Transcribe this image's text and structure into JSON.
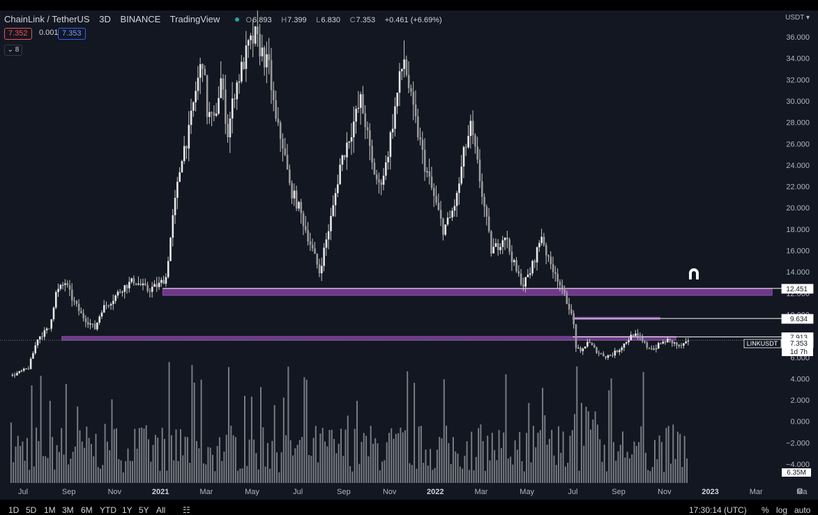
{
  "header": {
    "symbol": "ChainLink / TetherUS",
    "interval": "3D",
    "exchange": "BINANCE",
    "source": "TradingView",
    "ohlc": {
      "o_label": "O",
      "o": "6.893",
      "h_label": "H",
      "h": "7.399",
      "l_label": "L",
      "l": "6.830",
      "c_label": "C",
      "c": "7.353",
      "change": "+0.461 (+6.69%)"
    },
    "bid": "7.352",
    "spread": "0.001",
    "ask": "7.353",
    "indicator_toggle": "8",
    "currency": "USDT"
  },
  "colors": {
    "background": "#131722",
    "candle": "#c8c8c8",
    "volume": "#8a8d93",
    "zone": "#8e44ad",
    "line": "#ffffff"
  },
  "chart_data": {
    "type": "candlestick",
    "timeframe": "3D",
    "ylim": [
      -5.2,
      37.6
    ],
    "y_ticks": [
      "36.000",
      "34.000",
      "32.000",
      "30.000",
      "28.000",
      "26.000",
      "24.000",
      "22.000",
      "20.000",
      "18.000",
      "16.000",
      "14.000",
      "12.000",
      "10.000",
      "8.000",
      "6.000",
      "4.000",
      "2.000",
      "0.000",
      "−2.000",
      "−4.000"
    ],
    "y_tick_values": [
      36,
      34,
      32,
      30,
      28,
      26,
      24,
      22,
      20,
      18,
      16,
      14,
      12,
      10,
      8,
      6,
      4,
      2,
      0,
      -2,
      -4
    ],
    "x_ticks": [
      "Jul",
      "Sep",
      "Nov",
      "2021",
      "Mar",
      "May",
      "Jul",
      "Sep",
      "Nov",
      "2022",
      "Mar",
      "May",
      "Jul",
      "Sep",
      "Nov",
      "2023",
      "Mar",
      "Ma"
    ],
    "x_tick_months": [
      0,
      2,
      4,
      6,
      8,
      10,
      12,
      14,
      16,
      18,
      20,
      22,
      24,
      26,
      28,
      30,
      32,
      34
    ],
    "x_bold": [
      false,
      false,
      false,
      true,
      false,
      false,
      false,
      false,
      false,
      true,
      false,
      false,
      false,
      false,
      false,
      true,
      false,
      false
    ],
    "price_path": [
      [
        -0.5,
        4.3
      ],
      [
        0.2,
        5.0
      ],
      [
        0.6,
        7.8
      ],
      [
        1.1,
        8.7
      ],
      [
        1.4,
        12.0
      ],
      [
        1.8,
        13.0
      ],
      [
        2.1,
        11.5
      ],
      [
        2.5,
        10.0
      ],
      [
        3.1,
        8.7
      ],
      [
        3.4,
        10.5
      ],
      [
        3.9,
        11.5
      ],
      [
        4.3,
        12.5
      ],
      [
        4.8,
        13.2
      ],
      [
        5.4,
        12.3
      ],
      [
        5.9,
        12.8
      ],
      [
        6.2,
        13.5
      ],
      [
        6.5,
        19.0
      ],
      [
        6.7,
        22.0
      ],
      [
        6.9,
        25.0
      ],
      [
        7.2,
        27.0
      ],
      [
        7.5,
        31.0
      ],
      [
        7.8,
        34.0
      ],
      [
        8.0,
        29.0
      ],
      [
        8.3,
        28.0
      ],
      [
        8.6,
        32.0
      ],
      [
        8.9,
        27.0
      ],
      [
        9.2,
        31.0
      ],
      [
        9.5,
        33.0
      ],
      [
        9.8,
        35.0
      ],
      [
        10.1,
        36.0
      ],
      [
        10.4,
        34.5
      ],
      [
        10.7,
        33.0
      ],
      [
        11.0,
        28.0
      ],
      [
        11.3,
        26.0
      ],
      [
        11.6,
        22.0
      ],
      [
        12.0,
        20.0
      ],
      [
        12.3,
        18.0
      ],
      [
        12.6,
        16.0
      ],
      [
        12.9,
        14.0
      ],
      [
        13.2,
        17.0
      ],
      [
        13.5,
        20.0
      ],
      [
        13.8,
        24.0
      ],
      [
        14.1,
        26.0
      ],
      [
        14.4,
        28.0
      ],
      [
        14.7,
        30.0
      ],
      [
        14.9,
        28.0
      ],
      [
        15.2,
        24.0
      ],
      [
        15.5,
        22.0
      ],
      [
        15.8,
        24.0
      ],
      [
        16.1,
        28.0
      ],
      [
        16.4,
        32.0
      ],
      [
        16.6,
        34.0
      ],
      [
        16.9,
        30.0
      ],
      [
        17.2,
        27.0
      ],
      [
        17.5,
        24.0
      ],
      [
        17.9,
        21.0
      ],
      [
        18.3,
        18.0
      ],
      [
        18.6,
        19.0
      ],
      [
        18.9,
        21.0
      ],
      [
        19.2,
        25.0
      ],
      [
        19.5,
        27.5
      ],
      [
        19.8,
        24.0
      ],
      [
        20.1,
        20.0
      ],
      [
        20.4,
        16.0
      ],
      [
        20.7,
        16.5
      ],
      [
        21.0,
        17.5
      ],
      [
        21.2,
        16.0
      ],
      [
        21.5,
        14.0
      ],
      [
        21.8,
        12.8
      ],
      [
        22.1,
        14.0
      ],
      [
        22.4,
        16.0
      ],
      [
        22.6,
        17.5
      ],
      [
        22.9,
        15.0
      ],
      [
        23.2,
        14.0
      ],
      [
        23.5,
        12.2
      ],
      [
        23.8,
        10.8
      ],
      [
        24.0,
        9.0
      ],
      [
        24.1,
        7.0
      ],
      [
        24.3,
        6.4
      ],
      [
        24.6,
        7.5
      ],
      [
        24.9,
        6.8
      ],
      [
        25.1,
        6.4
      ],
      [
        25.4,
        6.1
      ],
      [
        25.7,
        6.3
      ],
      [
        26.0,
        6.8
      ],
      [
        26.3,
        7.5
      ],
      [
        26.6,
        8.2
      ],
      [
        26.9,
        7.7
      ],
      [
        27.2,
        7.0
      ],
      [
        27.5,
        6.8
      ],
      [
        27.8,
        7.3
      ],
      [
        28.1,
        7.6
      ],
      [
        28.4,
        7.3
      ],
      [
        28.6,
        7.0
      ],
      [
        28.8,
        7.2
      ],
      [
        29.0,
        7.35
      ]
    ],
    "zones": [
      {
        "from_month": 6.1,
        "to_month": 32.7,
        "low": 11.8,
        "high": 12.45
      },
      {
        "from_month": 24.0,
        "to_month": 27.8,
        "low": 9.55,
        "high": 9.75
      },
      {
        "from_month": 1.7,
        "to_month": 28.5,
        "low": 7.6,
        "high": 7.95
      }
    ],
    "hlines": [
      {
        "value": 12.451,
        "label": "12.451",
        "from_month": 6.1
      },
      {
        "value": 9.634,
        "label": "9.634",
        "from_month": 24.0
      },
      {
        "value": 7.913,
        "label": "7.913",
        "from_month": 24.0
      }
    ],
    "last_price": {
      "value": 7.353,
      "label": "7.353",
      "symbol": "LINKUSDT",
      "countdown": "1d 7h"
    },
    "volume_label": "6.35M",
    "dotted_line_value": 7.6
  },
  "toolbar": {
    "ranges": [
      "1D",
      "5D",
      "1M",
      "3M",
      "6M",
      "YTD",
      "1Y",
      "5Y",
      "All"
    ],
    "time": "17:30:14 (UTC)",
    "percent": "%",
    "log": "log",
    "auto": "auto"
  }
}
